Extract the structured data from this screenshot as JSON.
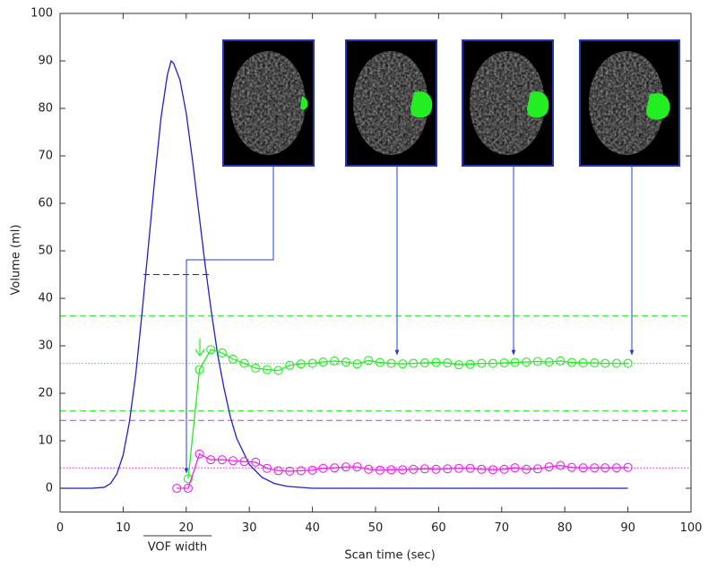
{
  "chart_data": {
    "type": "line",
    "xlabel": "Scan time (sec)",
    "ylabel": "Volume (ml)",
    "xlim": [
      0,
      100
    ],
    "ylim": [
      -5,
      100
    ],
    "xticks": [
      0,
      10,
      20,
      30,
      40,
      50,
      60,
      70,
      80,
      90,
      100
    ],
    "yticks": [
      0,
      10,
      20,
      30,
      40,
      50,
      60,
      70,
      80,
      90,
      100
    ],
    "series": [
      {
        "color": "#1f1fd0",
        "marker": false,
        "x": [
          0,
          5,
          7,
          8,
          9,
          10,
          11,
          12,
          13,
          14,
          15,
          16,
          17,
          17.6,
          18,
          19,
          20,
          21,
          22,
          23,
          24,
          25,
          26,
          27,
          28,
          30,
          32,
          34,
          36,
          40,
          50,
          90
        ],
        "values": [
          0,
          0,
          0.2,
          1,
          3,
          7,
          14,
          24,
          37,
          51,
          65,
          78,
          87,
          90,
          89.5,
          86,
          79,
          69,
          58,
          47,
          37,
          28,
          21,
          15,
          10.5,
          5,
          2.3,
          1,
          0.4,
          0,
          0,
          0
        ]
      },
      {
        "color": "#22ee22",
        "marker": true,
        "x": [
          18.5,
          20.3,
          22.1,
          23.9,
          25.7,
          27.4,
          29.2,
          31.0,
          32.8,
          34.6,
          36.4,
          38.2,
          40.0,
          41.7,
          43.5,
          45.3,
          47.1,
          48.9,
          50.7,
          52.5,
          54.3,
          56.0,
          57.8,
          59.6,
          61.4,
          63.2,
          65.0,
          66.8,
          68.6,
          70.4,
          72.1,
          73.9,
          75.7,
          77.5,
          79.3,
          81.1,
          82.9,
          84.7,
          86.4,
          88.2,
          90.0
        ],
        "values": [
          null,
          2,
          25,
          29.2,
          28.5,
          27.2,
          26.3,
          25.3,
          25,
          24.8,
          25.9,
          26.2,
          26.3,
          26.6,
          26.8,
          26.6,
          26.2,
          26.9,
          26.5,
          26.3,
          26.2,
          26.3,
          26.4,
          26.5,
          26.4,
          26,
          26.1,
          26.3,
          26.3,
          26.4,
          26.5,
          26.6,
          26.7,
          26.6,
          26.8,
          26.5,
          26.4,
          26.4,
          26.3,
          26.3,
          26.3
        ]
      },
      {
        "color": "#ee22ee",
        "marker": true,
        "x": [
          18.5,
          20.3,
          22.1,
          23.9,
          25.7,
          27.4,
          29.2,
          31.0,
          32.8,
          34.6,
          36.4,
          38.2,
          40.0,
          41.7,
          43.5,
          45.3,
          47.1,
          48.9,
          50.7,
          52.5,
          54.3,
          56.0,
          57.8,
          59.6,
          61.4,
          63.2,
          65.0,
          66.8,
          68.6,
          70.4,
          72.1,
          73.9,
          75.7,
          77.5,
          79.3,
          81.1,
          82.9,
          84.7,
          86.4,
          88.2,
          90.0
        ],
        "values": [
          0,
          0,
          7.2,
          6,
          6,
          5.8,
          5.6,
          5.5,
          4.2,
          3.7,
          3.6,
          3.7,
          3.8,
          4.2,
          4.3,
          4.5,
          4.5,
          4.0,
          3.8,
          3.9,
          3.9,
          4.0,
          4.1,
          4.0,
          4.1,
          4.2,
          4.2,
          4.0,
          3.9,
          4.0,
          4.3,
          4.0,
          4.1,
          4.5,
          4.8,
          4.4,
          4.3,
          4.3,
          4.3,
          4.3,
          4.4
        ]
      }
    ],
    "reference_lines": [
      {
        "value": 36.3,
        "color": "#22ee22",
        "style": "dashed"
      },
      {
        "value": 26.3,
        "color": "#22ee22",
        "style": "dotted"
      },
      {
        "value": 16.3,
        "color": "#22ee22",
        "style": "dashed"
      },
      {
        "value": 14.3,
        "color": "#ee22ee",
        "style": "dashed"
      },
      {
        "value": 4.3,
        "color": "#ee22ee",
        "style": "dotted"
      }
    ],
    "half_max_line": {
      "value": 45,
      "x": [
        13.2,
        24
      ],
      "color": "#333333"
    },
    "annotation": {
      "text": "VOF width",
      "x": [
        13.2,
        24
      ]
    }
  }
}
